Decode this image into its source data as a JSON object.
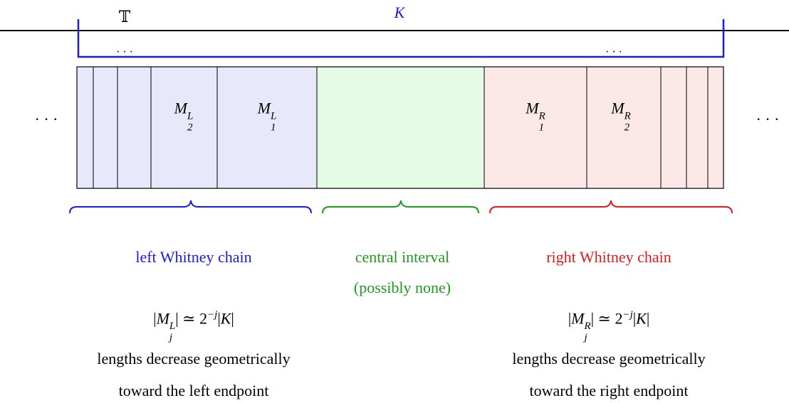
{
  "axis": {
    "space_label": "𝕋",
    "interval_label": "K",
    "dots_top_left": "· · ·",
    "dots_top_right": "· · ·"
  },
  "box": {
    "dots_left": "· · ·",
    "dots_right": "· · ·",
    "labels": {
      "left_2": [
        {
          "text": "M",
          "italic": true
        },
        {
          "sub": "2",
          "sup": "L"
        }
      ],
      "left_1": [
        {
          "text": "M",
          "italic": true
        },
        {
          "sub": "1",
          "sup": "L"
        }
      ],
      "right_1": [
        {
          "text": "M",
          "italic": true
        },
        {
          "sub": "1",
          "sup": "R"
        }
      ],
      "right_2": [
        {
          "text": "M",
          "italic": true
        },
        {
          "sub": "2",
          "sup": "R"
        }
      ]
    }
  },
  "left": {
    "title": "left Whitney chain",
    "formula": [
      {
        "text": "|"
      },
      {
        "text": "M",
        "italic": true
      },
      {
        "sub": "j",
        "sup": "L"
      },
      {
        "text": "| ≃ 2"
      },
      {
        "sup": "−j"
      },
      {
        "text": "|"
      },
      {
        "text": "K",
        "italic": true
      },
      {
        "text": "|"
      }
    ],
    "note_1": "lengths decrease geometrically",
    "note_2": "toward the left endpoint"
  },
  "central": {
    "title": "central interval",
    "subtitle": "(possibly none)"
  },
  "right": {
    "title": "right Whitney chain",
    "formula": [
      {
        "text": "|"
      },
      {
        "text": "M",
        "italic": true
      },
      {
        "sub": "j",
        "sup": "R"
      },
      {
        "text": "| ≃ 2"
      },
      {
        "sup": "−j"
      },
      {
        "text": "|"
      },
      {
        "text": "K",
        "italic": true
      },
      {
        "text": "|"
      }
    ],
    "note_1": "lengths decrease geometrically",
    "note_2": "toward the right endpoint"
  }
}
